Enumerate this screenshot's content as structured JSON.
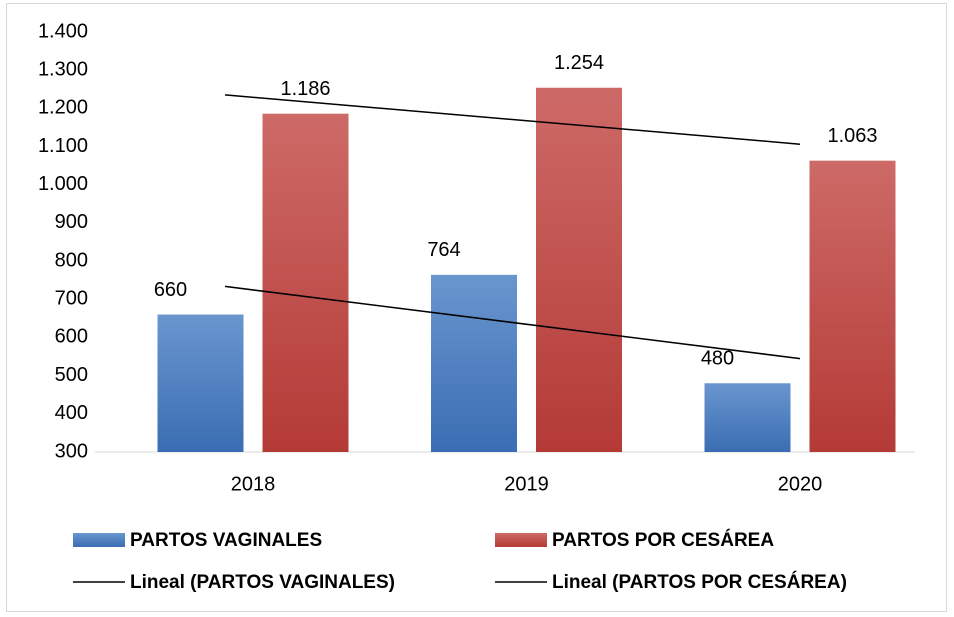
{
  "chart_data": {
    "type": "bar",
    "categories": [
      "2018",
      "2019",
      "2020"
    ],
    "series": [
      {
        "name": "PARTOS VAGINALES",
        "color": "#4f81bd",
        "values": [
          660,
          764,
          480
        ],
        "value_labels": [
          "660",
          "764",
          "480"
        ]
      },
      {
        "name": "PARTOS POR CESÁREA",
        "color": "#c0504d",
        "values": [
          1186,
          1254,
          1063
        ],
        "value_labels": [
          "1.186",
          "1.254",
          "1.063"
        ]
      }
    ],
    "trendline_labels": [
      "Lineal (PARTOS VAGINALES)",
      "Lineal (PARTOS POR CESÁREA)"
    ],
    "trendline_color": "#000000",
    "ylim": [
      300,
      1400
    ],
    "yticks": [
      300,
      400,
      500,
      600,
      700,
      800,
      900,
      {
        "value": 1000,
        "label": "1.000"
      },
      {
        "value": 1100,
        "label": "1.100"
      },
      {
        "value": 1200,
        "label": "1.200"
      },
      {
        "value": 1300,
        "label": "1.300"
      },
      {
        "value": 1400,
        "label": "1.400"
      }
    ],
    "grid": false
  }
}
